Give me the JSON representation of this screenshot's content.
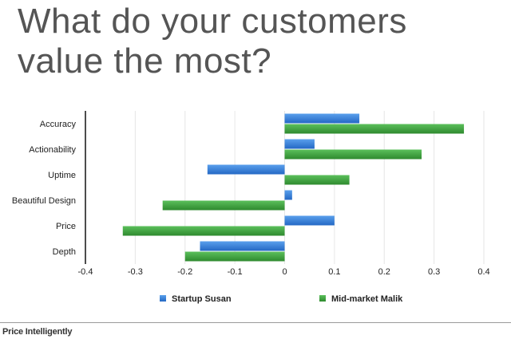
{
  "page_title_line1": "What do your customers",
  "page_title_line2": "value the most?",
  "footer_brand": "Price Intelligently",
  "chart_data": {
    "type": "bar",
    "orientation": "horizontal",
    "categories": [
      "Accuracy",
      "Actionability",
      "Uptime",
      "Beautiful Design",
      "Price",
      "Depth"
    ],
    "series": [
      {
        "name": "Startup Susan",
        "color": "#2f7bd6",
        "values": [
          0.15,
          0.06,
          -0.155,
          0.015,
          0.1,
          -0.17
        ]
      },
      {
        "name": "Mid-market Malik",
        "color": "#3ca03c",
        "values": [
          0.36,
          0.275,
          0.13,
          -0.245,
          -0.325,
          -0.2
        ]
      }
    ],
    "xlim": [
      -0.4,
      0.4
    ],
    "xticks": [
      "-0.4",
      "-0.3",
      "-0.2",
      "-0.1",
      "0",
      "0.1",
      "0.2",
      "0.3",
      "0.4"
    ],
    "xtick_values": [
      -0.4,
      -0.3,
      -0.2,
      -0.1,
      0,
      0.1,
      0.2,
      0.3,
      0.4
    ],
    "grid": true,
    "legend": "bottom"
  }
}
